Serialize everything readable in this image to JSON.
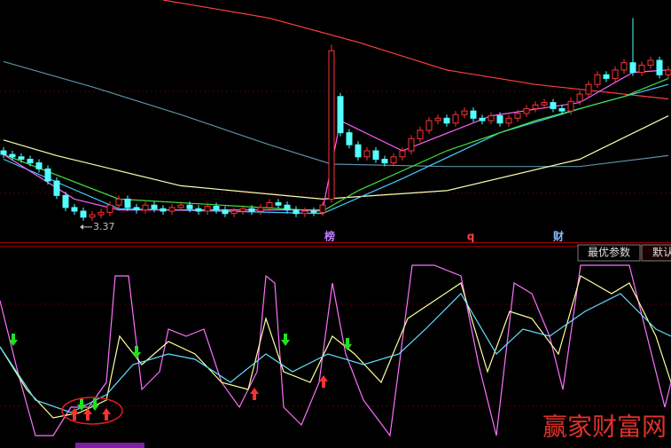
{
  "chart_data": [
    {
      "type": "candlestick",
      "xlim": [
        -0.4,
        75.3
      ],
      "ylim": [
        3.2,
        5.2
      ],
      "up_color": "#ff3232",
      "down_color": "#54ffff",
      "open": [
        3.95,
        3.92,
        3.9,
        3.88,
        3.85,
        3.8,
        3.7,
        3.58,
        3.48,
        3.45,
        3.4,
        3.42,
        3.44,
        3.5,
        3.55,
        3.48,
        3.46,
        3.5,
        3.47,
        3.45,
        3.48,
        3.5,
        3.47,
        3.45,
        3.49,
        3.46,
        3.43,
        3.45,
        3.47,
        3.45,
        3.48,
        3.52,
        3.5,
        3.46,
        3.43,
        3.45,
        3.44,
        3.55,
        4.4,
        4.1,
        4.0,
        3.9,
        3.95,
        3.88,
        3.85,
        3.9,
        3.95,
        4.05,
        4.12,
        4.2,
        4.22,
        4.18,
        4.25,
        4.28,
        4.22,
        4.2,
        4.24,
        4.18,
        4.22,
        4.26,
        4.3,
        4.33,
        4.35,
        4.3,
        4.28,
        4.36,
        4.42,
        4.5,
        4.58,
        4.55,
        4.62,
        4.68,
        4.6,
        4.66,
        4.7,
        4.58
      ],
      "high": [
        3.98,
        3.95,
        3.93,
        3.91,
        3.88,
        3.83,
        3.73,
        3.61,
        3.51,
        3.48,
        3.45,
        3.47,
        3.53,
        3.58,
        3.58,
        3.51,
        3.53,
        3.53,
        3.5,
        3.51,
        3.53,
        3.53,
        3.5,
        3.52,
        3.52,
        3.49,
        3.48,
        3.5,
        3.5,
        3.51,
        3.55,
        3.55,
        3.53,
        3.49,
        3.48,
        3.48,
        3.53,
        4.83,
        4.43,
        4.13,
        4.03,
        3.98,
        3.98,
        3.91,
        3.93,
        3.98,
        4.08,
        4.15,
        4.23,
        4.25,
        4.25,
        4.28,
        4.31,
        4.31,
        4.25,
        4.27,
        4.27,
        4.25,
        4.29,
        4.33,
        4.36,
        4.38,
        4.38,
        4.33,
        4.39,
        4.45,
        4.53,
        4.61,
        4.61,
        4.65,
        4.71,
        5.05,
        4.69,
        4.73,
        4.73,
        4.65
      ],
      "low": [
        3.89,
        3.87,
        3.85,
        3.82,
        3.77,
        3.67,
        3.55,
        3.45,
        3.42,
        3.37,
        3.37,
        3.39,
        3.41,
        3.47,
        3.45,
        3.43,
        3.43,
        3.44,
        3.42,
        3.42,
        3.45,
        3.44,
        3.42,
        3.42,
        3.43,
        3.4,
        3.4,
        3.42,
        3.42,
        3.42,
        3.45,
        3.47,
        3.43,
        3.4,
        3.4,
        3.41,
        3.41,
        3.52,
        4.07,
        3.97,
        3.87,
        3.87,
        3.85,
        3.82,
        3.82,
        3.87,
        3.92,
        4.02,
        4.09,
        4.17,
        4.15,
        4.15,
        4.22,
        4.19,
        4.17,
        4.17,
        4.15,
        4.15,
        4.19,
        4.23,
        4.27,
        4.3,
        4.27,
        4.25,
        4.25,
        4.33,
        4.39,
        4.47,
        4.52,
        4.52,
        4.59,
        4.57,
        4.57,
        4.63,
        4.55,
        4.55
      ],
      "close": [
        3.92,
        3.9,
        3.88,
        3.85,
        3.8,
        3.7,
        3.58,
        3.48,
        3.45,
        3.4,
        3.42,
        3.44,
        3.5,
        3.55,
        3.48,
        3.46,
        3.5,
        3.47,
        3.45,
        3.48,
        3.5,
        3.47,
        3.45,
        3.49,
        3.46,
        3.43,
        3.45,
        3.47,
        3.45,
        3.48,
        3.52,
        3.5,
        3.46,
        3.43,
        3.45,
        3.44,
        3.5,
        4.78,
        4.1,
        4.0,
        3.9,
        3.95,
        3.88,
        3.85,
        3.9,
        3.95,
        4.05,
        4.12,
        4.2,
        4.22,
        4.18,
        4.25,
        4.28,
        4.22,
        4.2,
        4.24,
        4.18,
        4.22,
        4.26,
        4.3,
        4.33,
        4.35,
        4.3,
        4.28,
        4.36,
        4.42,
        4.5,
        4.58,
        4.55,
        4.62,
        4.68,
        4.6,
        4.66,
        4.7,
        4.58,
        4.62
      ],
      "lines": [
        {
          "color": "#ff4040",
          "x": [
            18,
            30,
            40,
            50,
            60,
            75
          ],
          "values": [
            5.2,
            5.05,
            4.85,
            4.62,
            4.5,
            4.38
          ]
        },
        {
          "color": "#5a8fa8",
          "x": [
            0,
            10,
            20,
            30,
            37,
            50,
            65,
            75
          ],
          "values": [
            4.69,
            4.48,
            4.25,
            4.0,
            3.84,
            3.82,
            3.82,
            3.91
          ]
        },
        {
          "color": "#ffffb0",
          "x": [
            0,
            6,
            20,
            36,
            50,
            65,
            75
          ],
          "values": [
            4.04,
            3.91,
            3.66,
            3.55,
            3.62,
            3.88,
            4.24
          ]
        },
        {
          "color": "#40d0ff",
          "x": [
            0,
            13,
            36,
            45,
            56,
            66,
            75
          ],
          "values": [
            3.88,
            3.47,
            3.43,
            3.72,
            4.1,
            4.32,
            4.5
          ]
        },
        {
          "color": "#40e040",
          "x": [
            0,
            13,
            36,
            40,
            50,
            60,
            70,
            75
          ],
          "values": [
            3.92,
            3.55,
            3.45,
            3.62,
            3.95,
            4.2,
            4.4,
            4.55
          ]
        },
        {
          "color": "#ff60ff",
          "x": [
            0,
            8,
            13,
            36,
            38,
            45,
            55,
            65,
            71,
            75
          ],
          "values": [
            3.92,
            3.55,
            3.46,
            3.46,
            4.2,
            3.95,
            4.24,
            4.35,
            4.6,
            4.62
          ]
        }
      ],
      "low_annotation": {
        "x": 9,
        "value": 3.37
      },
      "event_markers": [
        {
          "x": 36.8,
          "label": "榜",
          "color": "#c080ff"
        },
        {
          "x": 52.7,
          "label": "q",
          "color": "#ff4040"
        },
        {
          "x": 62.6,
          "label": "财",
          "color": "#80c0ff"
        }
      ]
    },
    {
      "type": "line",
      "xlim": [
        0,
        75.7
      ],
      "ylim": [
        -5,
        105
      ],
      "series": [
        {
          "color": "#ff70ff",
          "x": [
            0,
            2,
            4,
            6,
            8,
            10,
            12,
            13,
            14.5,
            16,
            18,
            19,
            21,
            23,
            25,
            27,
            29,
            30,
            31,
            32,
            34,
            36,
            37.5,
            39,
            41,
            44,
            46.5,
            49,
            52,
            54,
            56,
            58,
            60,
            62,
            63.5,
            65.5,
            68,
            71,
            73,
            75,
            75.7
          ],
          "values": [
            78,
            38,
            2,
            2,
            18,
            18,
            32,
            92,
            92,
            28,
            38,
            62,
            58,
            62,
            32,
            18,
            38,
            92,
            88,
            18,
            8,
            32,
            88,
            48,
            22,
            2,
            98,
            98,
            92,
            42,
            2,
            88,
            82,
            58,
            28,
            98,
            98,
            98,
            58,
            18,
            32
          ]
        },
        {
          "color": "#ffffa0",
          "x": [
            0,
            3,
            6,
            9,
            12,
            13.5,
            16,
            19,
            22,
            25,
            28,
            30,
            32,
            35,
            37.5,
            40,
            43,
            46,
            49,
            52,
            55,
            57.5,
            60,
            63,
            65.5,
            69,
            71,
            74,
            75.7
          ],
          "values": [
            52,
            28,
            12,
            15,
            22,
            58,
            42,
            55,
            48,
            32,
            28,
            68,
            38,
            32,
            58,
            48,
            32,
            68,
            78,
            88,
            38,
            72,
            68,
            48,
            92,
            82,
            88,
            58,
            32
          ]
        },
        {
          "color": "#60e0ff",
          "x": [
            0,
            4,
            8,
            12,
            15,
            19,
            22,
            26,
            30,
            33,
            37,
            41,
            45,
            48,
            52,
            56,
            59,
            62,
            66,
            70,
            74,
            75.7
          ],
          "values": [
            52,
            22,
            15,
            25,
            42,
            48,
            45,
            32,
            48,
            38,
            48,
            42,
            48,
            62,
            82,
            48,
            62,
            58,
            72,
            82,
            62,
            58
          ]
        }
      ],
      "sell_signals": {
        "color": "#20e020",
        "x": [
          1.5,
          9.2,
          10.7,
          15.4,
          32.2,
          39.2
        ],
        "values": [
          52.5,
          16,
          16,
          45.5,
          52.5,
          50
        ]
      },
      "buy_signals": {
        "color": "#ff3030",
        "x": [
          8.4,
          9.9,
          12,
          28.7,
          36.5
        ],
        "values": [
          17.5,
          17.5,
          17.5,
          29,
          36
        ]
      }
    }
  ],
  "toolbar": {
    "buttons": [
      "最优参数",
      "默认"
    ]
  },
  "watermark": "赢家财富网"
}
